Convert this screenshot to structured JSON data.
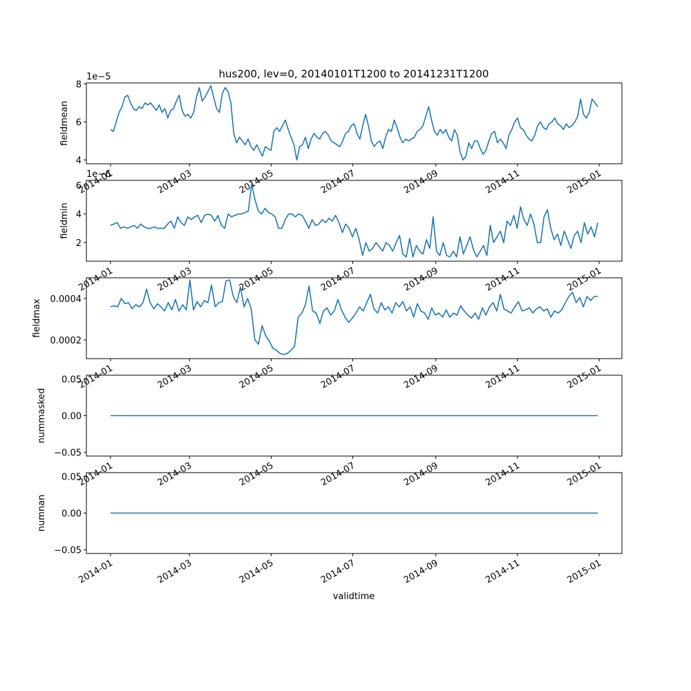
{
  "figure": {
    "title": "hus200, lev=0, 20140101T1200 to 20141231T1200",
    "xlabel": "validtime"
  },
  "colors": {
    "line": "#1f77b4",
    "axes": "#000000",
    "background": "#ffffff"
  },
  "chart_data": {
    "type": "line",
    "title": "hus200, lev=0, 20140101T1200 to 20141231T1200",
    "xlabel": "validtime",
    "x_ticks": [
      "2014-01",
      "2014-03",
      "2014-05",
      "2014-07",
      "2014-09",
      "2014-11",
      "2015-01"
    ],
    "x_start": "2014-01-01",
    "x_end": "2014-12-31",
    "xlim": [
      "2013-12-14",
      "2015-01-18"
    ],
    "grid": false,
    "panels": [
      {
        "name": "fieldmean",
        "ylabel": "fieldmean",
        "offset_text": "1e−5",
        "ylim": [
          3.8,
          8.05
        ],
        "yticks": [
          4,
          6,
          8
        ],
        "ytick_labels": [
          "4",
          "6",
          "8"
        ],
        "series": [
          {
            "name": "fieldmean",
            "values": [
              5.6,
              5.5,
              6.0,
              6.5,
              6.8,
              7.3,
              7.4,
              7.0,
              6.7,
              6.6,
              6.8,
              6.7,
              7.0,
              6.9,
              7.0,
              6.8,
              6.6,
              6.9,
              6.5,
              6.7,
              6.2,
              6.6,
              6.7,
              7.1,
              7.4,
              6.6,
              6.3,
              6.4,
              6.2,
              6.5,
              7.3,
              7.8,
              7.1,
              7.3,
              7.6,
              7.9,
              7.3,
              6.7,
              6.5,
              7.5,
              7.8,
              7.6,
              7.0,
              5.4,
              4.9,
              5.2,
              5.0,
              4.8,
              5.1,
              4.7,
              4.5,
              4.8,
              4.5,
              4.2,
              4.7,
              4.6,
              4.5,
              5.5,
              5.7,
              5.5,
              5.8,
              6.1,
              5.6,
              5.2,
              4.8,
              4.0,
              4.7,
              4.8,
              5.2,
              4.6,
              5.1,
              5.4,
              5.2,
              5.1,
              5.4,
              5.5,
              5.3,
              5.0,
              4.9,
              4.8,
              4.7,
              5.0,
              5.4,
              5.5,
              5.8,
              5.9,
              5.4,
              5.1,
              5.8,
              6.4,
              5.8,
              5.0,
              4.7,
              4.9,
              5.0,
              4.6,
              5.2,
              5.6,
              5.5,
              6.1,
              5.7,
              5.2,
              4.9,
              5.1,
              5.0,
              5.1,
              5.2,
              5.5,
              5.6,
              5.8,
              6.3,
              6.8,
              6.1,
              5.5,
              5.3,
              5.6,
              5.4,
              5.6,
              5.2,
              5.0,
              5.6,
              5.3,
              4.4,
              4.0,
              4.2,
              4.9,
              4.6,
              5.0,
              5.0,
              4.6,
              4.3,
              4.5,
              5.0,
              5.4,
              5.5,
              4.9,
              5.1,
              4.9,
              4.6,
              5.3,
              5.6,
              6.0,
              6.2,
              5.7,
              5.6,
              5.3,
              5.1,
              5.0,
              5.3,
              5.8,
              6.0,
              5.7,
              5.6,
              5.9,
              6.0,
              6.2,
              5.9,
              5.8,
              5.6,
              5.9,
              5.7,
              5.8,
              6.0,
              6.3,
              7.2,
              6.4,
              6.2,
              6.5,
              7.2,
              7.0,
              6.8
            ]
          }
        ]
      },
      {
        "name": "fieldmin",
        "ylabel": "fieldmin",
        "offset_text": "1e−6",
        "ylim": [
          0.7,
          6.35
        ],
        "yticks": [
          2,
          4,
          6
        ],
        "ytick_labels": [
          "2",
          "4",
          "6"
        ],
        "series": [
          {
            "name": "fieldmin",
            "values": [
              3.2,
              3.3,
              3.4,
              3.0,
              3.1,
              3.0,
              3.1,
              3.2,
              3.0,
              3.3,
              3.1,
              3.0,
              3.0,
              3.1,
              3.0,
              3.0,
              3.0,
              3.3,
              3.5,
              3.0,
              3.8,
              3.4,
              3.2,
              3.8,
              3.6,
              3.8,
              3.9,
              3.4,
              3.9,
              4.0,
              3.9,
              3.5,
              3.9,
              3.2,
              3.0,
              4.0,
              3.8,
              3.9,
              4.0,
              4.0,
              4.1,
              4.2,
              6.1,
              5.0,
              4.2,
              4.0,
              4.4,
              4.1,
              4.0,
              3.8,
              3.0,
              3.0,
              3.6,
              4.0,
              4.0,
              3.8,
              4.0,
              3.9,
              3.5,
              3.0,
              3.6,
              3.2,
              3.3,
              3.6,
              3.4,
              3.7,
              3.5,
              3.9,
              3.4,
              2.7,
              3.3,
              3.0,
              2.4,
              3.0,
              2.2,
              1.1,
              2.0,
              1.4,
              1.6,
              2.0,
              1.7,
              1.4,
              2.0,
              1.8,
              1.4,
              2.0,
              2.5,
              1.2,
              1.0,
              2.3,
              1.0,
              1.8,
              1.4,
              1.2,
              2.2,
              1.6,
              3.8,
              1.4,
              1.1,
              2.0,
              1.1,
              1.0,
              1.4,
              1.0,
              2.4,
              1.2,
              1.8,
              2.4,
              1.5,
              1.0,
              1.4,
              1.8,
              1.1,
              3.2,
              2.0,
              2.4,
              2.8,
              2.0,
              3.5,
              3.2,
              3.9,
              3.0,
              4.5,
              3.6,
              3.2,
              4.0,
              3.3,
              2.0,
              2.0,
              3.8,
              4.3,
              3.0,
              2.2,
              2.6,
              1.8,
              2.8,
              2.2,
              1.6,
              2.5,
              2.8,
              2.0,
              3.4,
              2.6,
              3.1,
              2.4,
              3.4
            ]
          }
        ]
      },
      {
        "name": "fieldmax",
        "ylabel": "fieldmax",
        "offset_text": "",
        "ylim": [
          0.00011,
          0.0005
        ],
        "yticks": [
          0.0002,
          0.0004
        ],
        "ytick_labels": [
          "0.0002",
          "0.0004"
        ],
        "series": [
          {
            "name": "fieldmax",
            "values": [
              0.00036,
              0.000365,
              0.00036,
              0.0004,
              0.000375,
              0.00038,
              0.00035,
              0.00037,
              0.00036,
              0.00038,
              0.000445,
              0.00038,
              0.00035,
              0.000375,
              0.00036,
              0.00034,
              0.00038,
              0.000345,
              0.000395,
              0.00034,
              0.00037,
              0.000345,
              0.00049,
              0.000345,
              0.000385,
              0.00036,
              0.00039,
              0.00038,
              0.000465,
              0.00036,
              0.00038,
              0.000385,
              0.000485,
              0.00049,
              0.00041,
              0.00038,
              0.000455,
              0.00036,
              0.0004,
              0.00035,
              0.0002,
              0.00018,
              0.00027,
              0.00022,
              0.000195,
              0.00016,
              0.00015,
              0.000135,
              0.00013,
              0.000135,
              0.00015,
              0.00017,
              0.00031,
              0.00033,
              0.00037,
              0.00046,
              0.00034,
              0.00033,
              0.00028,
              0.00034,
              0.000355,
              0.00032,
              0.00034,
              0.000395,
              0.000345,
              0.00031,
              0.000285,
              0.000305,
              0.00033,
              0.00036,
              0.00034,
              0.00038,
              0.00042,
              0.00035,
              0.00033,
              0.00038,
              0.000345,
              0.00036,
              0.00033,
              0.00038,
              0.00036,
              0.000385,
              0.00034,
              0.00036,
              0.00031,
              0.000375,
              0.00034,
              0.00033,
              0.0003,
              0.000355,
              0.00032,
              0.00033,
              0.00031,
              0.000345,
              0.00031,
              0.00033,
              0.00032,
              0.000365,
              0.00034,
              0.00032,
              0.000305,
              0.00033,
              0.0003,
              0.000355,
              0.00032,
              0.00036,
              0.00038,
              0.00034,
              0.00042,
              0.00035,
              0.00034,
              0.00033,
              0.00036,
              0.000385,
              0.00034,
              0.000345,
              0.000355,
              0.00033,
              0.00035,
              0.00036,
              0.00034,
              0.00035,
              0.00031,
              0.00034,
              0.00033,
              0.000345,
              0.00038,
              0.00041,
              0.00043,
              0.00038,
              0.000405,
              0.00036,
              0.00041,
              0.00039,
              0.00041,
              0.00041
            ]
          }
        ]
      },
      {
        "name": "nummasked",
        "ylabel": "nummasked",
        "offset_text": "",
        "ylim": [
          -0.055,
          0.055
        ],
        "yticks": [
          -0.05,
          0.0,
          0.05
        ],
        "ytick_labels": [
          "−0.05",
          "0.00",
          "0.05"
        ],
        "series": [
          {
            "name": "nummasked",
            "values": [
              0,
              0
            ]
          }
        ]
      },
      {
        "name": "numnan",
        "ylabel": "numnan",
        "offset_text": "",
        "ylim": [
          -0.055,
          0.055
        ],
        "yticks": [
          -0.05,
          0.0,
          0.05
        ],
        "ytick_labels": [
          "−0.05",
          "0.00",
          "0.05"
        ],
        "series": [
          {
            "name": "numnan",
            "values": [
              0,
              0
            ]
          }
        ]
      }
    ]
  }
}
